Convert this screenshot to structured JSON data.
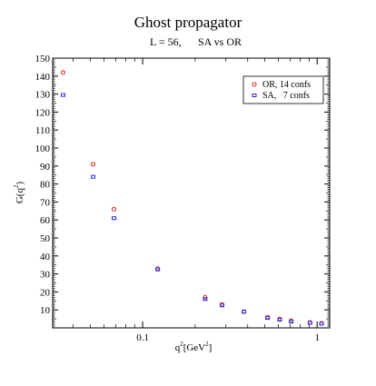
{
  "chart_data": {
    "type": "scatter",
    "title": "Ghost propagator",
    "subtitle_parts": [
      "L =  56,",
      "SA  vs  OR"
    ],
    "xlabel_parts": [
      "q",
      "2",
      "[GeV",
      "2",
      "]"
    ],
    "ylabel_parts": [
      "G(q",
      "2",
      ")"
    ],
    "xscale": "log",
    "xlim": [
      0.0305,
      1.18
    ],
    "ylim": [
      0,
      150
    ],
    "x_ticks": [
      0.1,
      1
    ],
    "x_tick_labels": [
      "0.1",
      "1"
    ],
    "y_ticks": [
      10,
      20,
      30,
      40,
      50,
      60,
      70,
      80,
      90,
      100,
      110,
      120,
      130,
      140,
      150
    ],
    "y_tick_labels": [
      "10",
      "20",
      "30",
      "40",
      "50",
      "60",
      "70",
      "80",
      "90",
      "100",
      "110",
      "120",
      "130",
      "140",
      "150"
    ],
    "grid": false,
    "legend_position": "top-right",
    "series": [
      {
        "name": "OR, 14 confs",
        "color": "#d62020",
        "marker": "circle",
        "x": [
          0.035,
          0.052,
          0.0685,
          0.122,
          0.228,
          0.285,
          0.38,
          0.52,
          0.61,
          0.71,
          0.91,
          1.06
        ],
        "y": [
          142,
          91,
          66,
          33,
          17,
          13,
          9,
          6,
          5,
          4,
          3,
          2.5
        ]
      },
      {
        "name": "SA,   7 confs",
        "color": "#2a2ad6",
        "marker": "square",
        "x": [
          0.035,
          0.052,
          0.0685,
          0.122,
          0.228,
          0.285,
          0.38,
          0.52,
          0.61,
          0.71,
          0.91,
          1.06
        ],
        "y": [
          129.5,
          84,
          61,
          32.5,
          16,
          12.5,
          9,
          5.5,
          4.5,
          3.5,
          2.8,
          2.3
        ]
      }
    ]
  }
}
